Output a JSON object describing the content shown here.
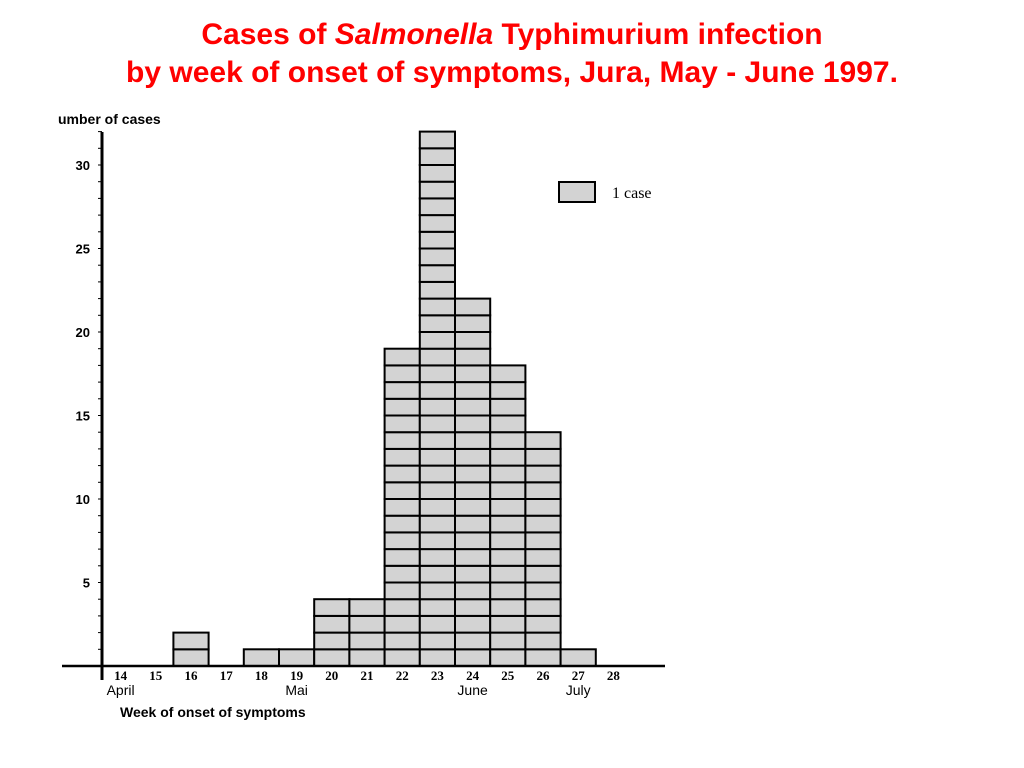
{
  "title": {
    "prefix": "Cases of ",
    "italic": "Salmonella",
    "suffix": " Typhimurium infection",
    "line2": "by week of onset of symptoms, Jura, May - June 1997."
  },
  "colors": {
    "title": "#ff0000",
    "box_fill": "#d3d3d3",
    "box_stroke": "#000000"
  },
  "legend": {
    "label": "1 case"
  },
  "chart_data": {
    "type": "bar",
    "style": "epidemic curve, one box per case",
    "categories": [
      "14",
      "15",
      "16",
      "17",
      "18",
      "19",
      "20",
      "21",
      "22",
      "23",
      "24",
      "25",
      "26",
      "27",
      "28"
    ],
    "values": [
      0,
      0,
      2,
      0,
      1,
      1,
      4,
      4,
      19,
      32,
      22,
      18,
      14,
      1,
      0
    ],
    "months": [
      {
        "label": "April",
        "at_week": "14"
      },
      {
        "label": "Mai",
        "at_week": "19"
      },
      {
        "label": "June",
        "at_week": "24"
      },
      {
        "label": "July",
        "at_week": "27"
      }
    ],
    "ylabel": "umber of cases",
    "xlabel": "Week of onset of symptoms",
    "yticks": [
      5,
      10,
      15,
      20,
      25,
      30
    ],
    "ylim": [
      0,
      32
    ],
    "grid": false,
    "legend_position": "top-right"
  }
}
